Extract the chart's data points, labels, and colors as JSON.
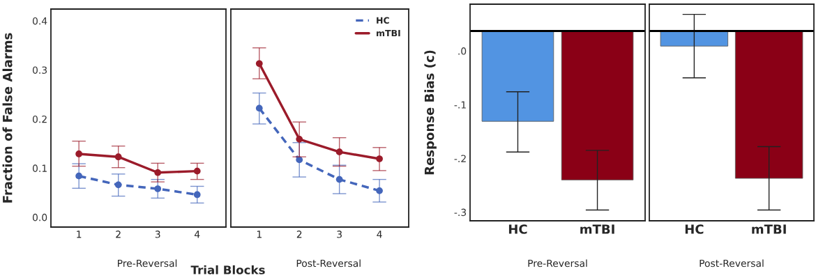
{
  "chart_data": [
    {
      "type": "line",
      "xlabel": "Pre-Reversal",
      "ylabel": "Fraction of False Alarms",
      "categories": [
        "1",
        "2",
        "3",
        "4"
      ],
      "ylim": [
        -0.02,
        0.424
      ],
      "yticks": [
        {
          "value": 0,
          "label": "0.0"
        },
        {
          "value": 0.1,
          "label": "0.1"
        },
        {
          "value": 0.2,
          "label": "0.2"
        },
        {
          "value": 0.3,
          "label": "0.3"
        },
        {
          "value": 0.4,
          "label": "0.4"
        }
      ],
      "marker": "circle",
      "grid": false,
      "annotations": [
        "Trial Blocks"
      ],
      "series": [
        {
          "color": "#4466bb",
          "line_style": "dashed",
          "values": [
            0.084,
            0.066,
            0.058,
            0.046
          ],
          "errors": [
            [
              0.059,
              0.109
            ],
            [
              0.043,
              0.088
            ],
            [
              0.039,
              0.077
            ],
            [
              0.029,
              0.063
            ]
          ]
        },
        {
          "color": "#9b1b2a",
          "line_style": "solid",
          "values": [
            0.129,
            0.123,
            0.091,
            0.094
          ],
          "errors": [
            [
              0.104,
              0.155
            ],
            [
              0.101,
              0.145
            ],
            [
              0.072,
              0.11
            ],
            [
              0.077,
              0.11
            ]
          ]
        }
      ]
    },
    {
      "type": "line",
      "xlabel": "Post-Reversal",
      "categories": [
        "1",
        "2",
        "3",
        "4"
      ],
      "ylim": [
        -0.02,
        0.424
      ],
      "tick_labels": "x",
      "marker": "circle",
      "grid": false,
      "legend": "top right",
      "series": [
        {
          "name": "HC",
          "color": "#4466bb",
          "line_style": "dashed",
          "values": [
            0.222,
            0.117,
            0.077,
            0.054
          ],
          "errors": [
            [
              0.19,
              0.253
            ],
            [
              0.082,
              0.152
            ],
            [
              0.048,
              0.106
            ],
            [
              0.031,
              0.077
            ]
          ]
        },
        {
          "name": "mTBI",
          "color": "#9b1b2a",
          "line_style": "solid",
          "values": [
            0.313,
            0.159,
            0.133,
            0.119
          ],
          "errors": [
            [
              0.282,
              0.345
            ],
            [
              0.123,
              0.194
            ],
            [
              0.104,
              0.162
            ],
            [
              0.095,
              0.142
            ]
          ]
        }
      ]
    },
    {
      "type": "bar",
      "xlabel": "Pre-Reversal",
      "ylabel": "Response Bias (c)",
      "categories": [
        "HC",
        "mTBI"
      ],
      "ylim": [
        -0.316,
        0.087
      ],
      "yticks": [
        {
          "value": 0,
          "label": ".0"
        },
        {
          "value": -0.1,
          "label": "-.1"
        },
        {
          "value": -0.2,
          "label": "-.2"
        },
        {
          "value": -0.3,
          "label": "-.3"
        }
      ],
      "grid": false,
      "base": [
        0.037,
        0.037
      ],
      "values": [
        -0.168,
        -0.277
      ],
      "colors": [
        "#5294e2",
        "#8a0016"
      ],
      "errors": [
        [
          -0.188,
          -0.076
        ],
        [
          -0.296,
          -0.185
        ]
      ],
      "ref_lines": [
        {
          "axis": "y",
          "value": 0.037,
          "color": "#000000"
        }
      ]
    },
    {
      "type": "bar",
      "xlabel": "Post-Reversal",
      "categories": [
        "HC",
        "mTBI"
      ],
      "ylim": [
        -0.316,
        0.087
      ],
      "tick_labels": "x",
      "grid": false,
      "base": [
        0.037,
        0.037
      ],
      "values": [
        -0.028,
        -0.274
      ],
      "colors": [
        "#5294e2",
        "#8a0016"
      ],
      "errors": [
        [
          -0.05,
          0.068
        ],
        [
          -0.296,
          -0.178
        ]
      ],
      "ref_lines": [
        {
          "axis": "y",
          "value": 0.037,
          "color": "#000000"
        }
      ]
    }
  ]
}
